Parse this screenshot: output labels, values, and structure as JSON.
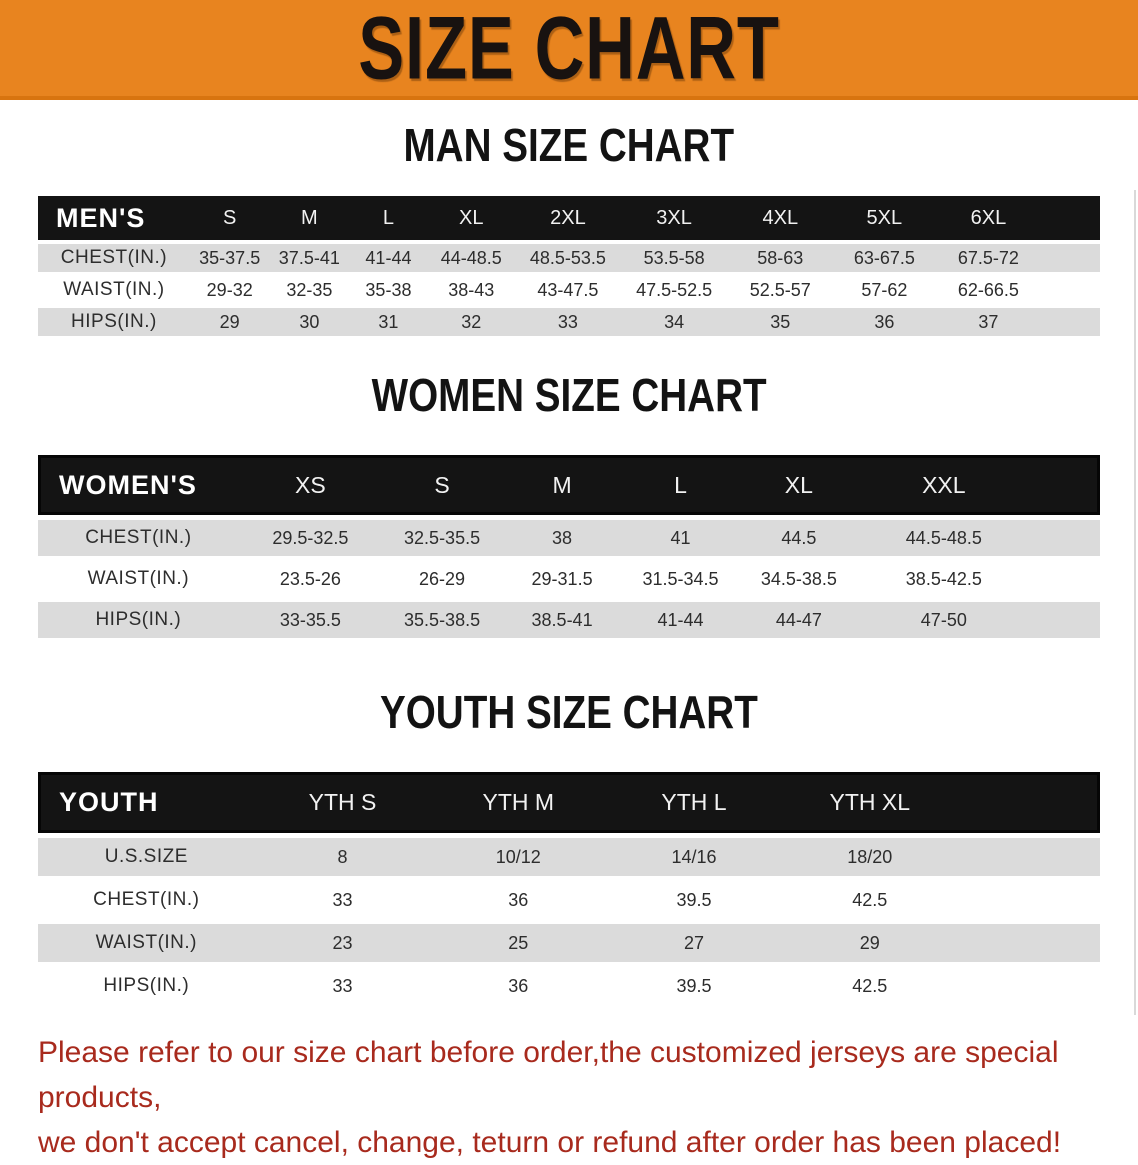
{
  "banner": {
    "title": "SIZE CHART"
  },
  "headings": {
    "man": "MAN SIZE CHART",
    "women": "WOMEN SIZE CHART",
    "youth": "YOUTH SIZE CHART"
  },
  "tables": {
    "men": {
      "label": "MEN'S",
      "sizes": [
        "S",
        "M",
        "L",
        "XL",
        "2XL",
        "3XL",
        "4XL",
        "5XL",
        "6XL"
      ],
      "rows": [
        {
          "label": "CHEST(IN.)",
          "values": [
            "35-37.5",
            "37.5-41",
            "41-44",
            "44-48.5",
            "48.5-53.5",
            "53.5-58",
            "58-63",
            "63-67.5",
            "67.5-72"
          ]
        },
        {
          "label": "WAIST(IN.)",
          "values": [
            "29-32",
            "32-35",
            "35-38",
            "38-43",
            "43-47.5",
            "47.5-52.5",
            "52.5-57",
            "57-62",
            "62-66.5"
          ]
        },
        {
          "label": "HIPS(IN.)",
          "values": [
            "29",
            "30",
            "31",
            "32",
            "33",
            "34",
            "35",
            "36",
            "37"
          ]
        }
      ]
    },
    "women": {
      "label": "WOMEN'S",
      "sizes": [
        "XS",
        "S",
        "M",
        "L",
        "XL",
        "XXL"
      ],
      "rows": [
        {
          "label": "CHEST(IN.)",
          "values": [
            "29.5-32.5",
            "32.5-35.5",
            "38",
            "41",
            "44.5",
            "44.5-48.5"
          ]
        },
        {
          "label": "WAIST(IN.)",
          "values": [
            "23.5-26",
            "26-29",
            "29-31.5",
            "31.5-34.5",
            "34.5-38.5",
            "38.5-42.5"
          ]
        },
        {
          "label": "HIPS(IN.)",
          "values": [
            "33-35.5",
            "35.5-38.5",
            "38.5-41",
            "41-44",
            "44-47",
            "47-50"
          ]
        }
      ]
    },
    "youth": {
      "label": "YOUTH",
      "sizes": [
        "YTH S",
        "YTH M",
        "YTH L",
        "YTH XL"
      ],
      "rows": [
        {
          "label": "U.S.SIZE",
          "values": [
            "8",
            "10/12",
            "14/16",
            "18/20"
          ]
        },
        {
          "label": "CHEST(IN.)",
          "values": [
            "33",
            "36",
            "39.5",
            "42.5"
          ]
        },
        {
          "label": "WAIST(IN.)",
          "values": [
            "23",
            "25",
            "27",
            "29"
          ]
        },
        {
          "label": "HIPS(IN.)",
          "values": [
            "33",
            "36",
            "39.5",
            "42.5"
          ]
        }
      ]
    }
  },
  "disclaimer": {
    "line1": "Please refer to our size chart before order,the customized jerseys are special products,",
    "line2": "we don't accept cancel, change, teturn or refund after order has been placed!"
  },
  "colors": {
    "banner_orange": "#E8841F",
    "banner_border": "#D8740F",
    "header_black": "#141414",
    "row_gray": "#DBDBDB",
    "disclaimer_red": "#A82A1D"
  }
}
